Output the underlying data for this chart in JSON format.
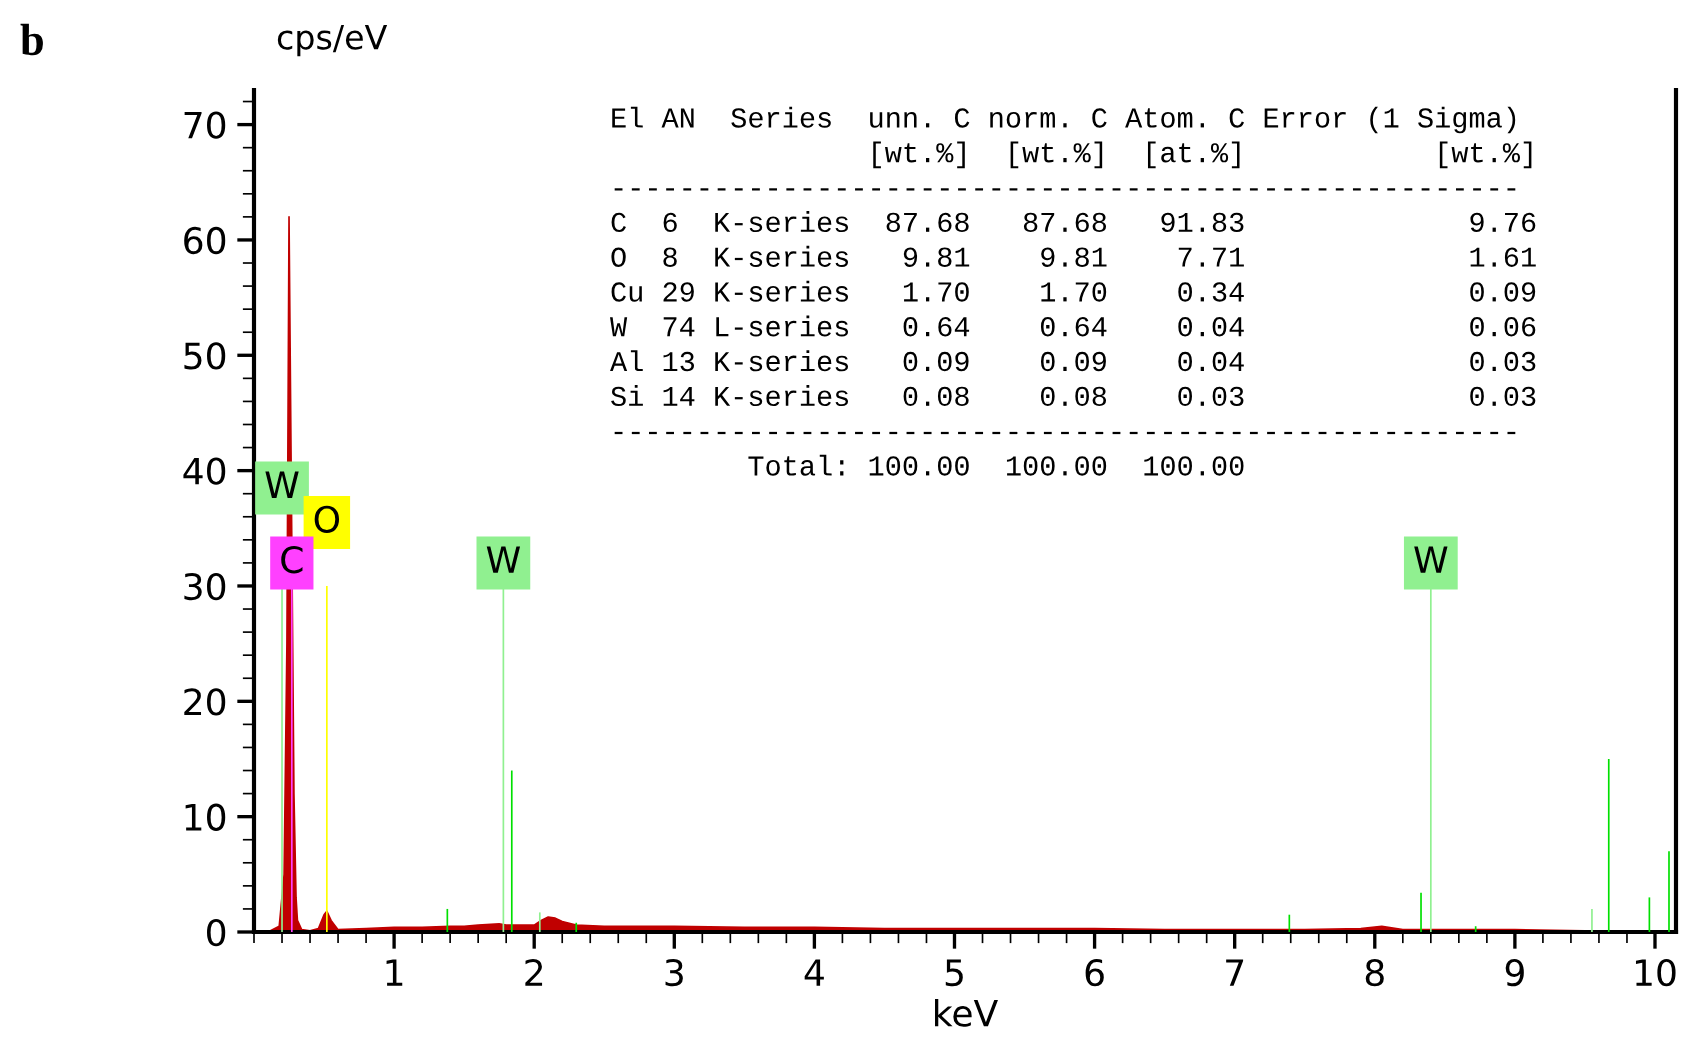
{
  "chart_data": {
    "type": "area",
    "xlabel": "keV",
    "ylabel": "cps/eV",
    "xlim": [
      0,
      10.15
    ],
    "ylim": [
      0,
      73
    ],
    "xticks": [
      1,
      2,
      3,
      4,
      5,
      6,
      7,
      8,
      9,
      10
    ],
    "yticks": [
      0,
      10,
      20,
      30,
      40,
      50,
      60,
      70
    ],
    "grid": false,
    "series": [
      {
        "color": "#c00000",
        "x": [
          0.1,
          0.18,
          0.215,
          0.235,
          0.25,
          0.285,
          0.3,
          0.31,
          0.34,
          0.4,
          0.46,
          0.5,
          0.52,
          0.55,
          0.6,
          0.8,
          1.0,
          1.2,
          1.4,
          1.5,
          1.6,
          1.75,
          1.8,
          1.9,
          2.0,
          2.05,
          2.1,
          2.15,
          2.2,
          2.3,
          2.5,
          2.8,
          3.0,
          3.5,
          4.0,
          4.5,
          5,
          5.5,
          6,
          6.5,
          7,
          7.5,
          7.9,
          8.05,
          8.2,
          8.5,
          9,
          9.5,
          10,
          10.15
        ],
        "values": [
          0,
          0.5,
          5,
          25,
          62,
          12,
          3,
          1,
          0.2,
          0.1,
          0.3,
          1.5,
          1.8,
          1,
          0.2,
          0.3,
          0.4,
          0.4,
          0.5,
          0.5,
          0.6,
          0.7,
          0.6,
          0.6,
          0.6,
          1.0,
          1.3,
          1.2,
          0.9,
          0.6,
          0.5,
          0.5,
          0.5,
          0.4,
          0.4,
          0.3,
          0.3,
          0.3,
          0.3,
          0.2,
          0.2,
          0.2,
          0.3,
          0.5,
          0.2,
          0.2,
          0.2,
          0.1,
          0.1,
          0.1
        ]
      },
      {
        "type": "bar",
        "x": [
          0.2,
          0.27,
          0.52,
          1.38,
          1.78,
          1.84,
          2.04,
          2.3,
          7.39,
          8.33,
          8.4,
          8.72,
          9.55,
          9.67,
          9.96,
          10.1
        ],
        "values": [
          30,
          30,
          30,
          2,
          30,
          14,
          1.7,
          0.8,
          1.5,
          3.4,
          30,
          0.5,
          2,
          15,
          3,
          7
        ],
        "colors": [
          "#90f090",
          "#ff40ff",
          "#ffff00",
          "#00e000",
          "#90f090",
          "#00e000",
          "#90f090",
          "#00e000",
          "#00e000",
          "#00e000",
          "#90f090",
          "#00e000",
          "#90f090",
          "#00e000",
          "#00e000",
          "#00e000"
        ]
      }
    ],
    "annotations": [
      {
        "text": "W",
        "x": 0.2,
        "y": 38.5
      },
      {
        "text": "O",
        "x": 0.52,
        "y": 35.5
      },
      {
        "text": "C",
        "x": 0.27,
        "y": 32
      },
      {
        "text": "W",
        "x": 1.78,
        "y": 32
      },
      {
        "text": "W",
        "x": 8.4,
        "y": 32
      },
      "b",
      "El AN  Series  unn. C norm. C Atom. C Error (1 Sigma)",
      "               [wt.%]  [wt.%]  [at.%]           [wt.%]",
      "-----------------------------------------------------",
      "C  6  K-series  87.68   87.68   91.83             9.76",
      "O  8  K-series   9.81    9.81    7.71             1.61",
      "Cu 29 K-series   1.70    1.70    0.34             0.09",
      "W  74 L-series   0.64    0.64    0.04             0.06",
      "Al 13 K-series   0.09    0.09    0.04             0.03",
      "Si 14 K-series   0.08    0.08    0.03             0.03",
      "-----------------------------------------------------",
      "        Total: 100.00  100.00  100.00"
    ]
  }
}
